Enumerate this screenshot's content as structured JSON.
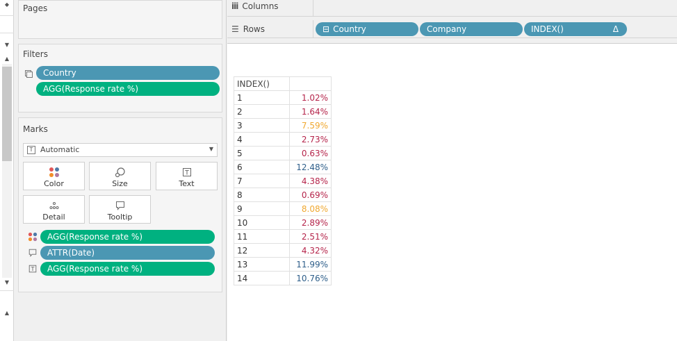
{
  "pages": {
    "title": "Pages"
  },
  "filters": {
    "title": "Filters",
    "items": [
      {
        "label": "Country",
        "color": "#4b97b3"
      },
      {
        "label": "AGG(Response rate %)",
        "color": "#00b180"
      }
    ]
  },
  "marks": {
    "title": "Marks",
    "type_selected": "Automatic",
    "buttons": {
      "color": "Color",
      "size": "Size",
      "text": "Text",
      "detail": "Detail",
      "tooltip": "Tooltip"
    },
    "fields": [
      {
        "icon": "color-dots-icon",
        "label": "AGG(Response rate %)",
        "color": "#00b180"
      },
      {
        "icon": "tooltip-icon",
        "label": "ATTR(Date)",
        "color": "#4b97b3"
      },
      {
        "icon": "text-icon",
        "label": "AGG(Response rate %)",
        "color": "#00b180"
      }
    ]
  },
  "shelves": {
    "columns_label": "Columns",
    "rows_label": "Rows",
    "rows_pills": [
      {
        "label": "Country",
        "prefix": "⊟",
        "color": "#4b97b3"
      },
      {
        "label": "Company",
        "color": "#4b97b3"
      },
      {
        "label": "INDEX()",
        "suffix": "Δ",
        "color": "#4b97b3"
      }
    ]
  },
  "table": {
    "header": "INDEX()",
    "rows": [
      {
        "index": "1",
        "value": "1.02%",
        "color": "#b5244a"
      },
      {
        "index": "2",
        "value": "1.64%",
        "color": "#b5244a"
      },
      {
        "index": "3",
        "value": "7.59%",
        "color": "#f0a830"
      },
      {
        "index": "4",
        "value": "2.73%",
        "color": "#b5244a"
      },
      {
        "index": "5",
        "value": "0.63%",
        "color": "#b5244a"
      },
      {
        "index": "6",
        "value": "12.48%",
        "color": "#2f5f8a"
      },
      {
        "index": "7",
        "value": "4.38%",
        "color": "#b5244a"
      },
      {
        "index": "8",
        "value": "0.69%",
        "color": "#b5244a"
      },
      {
        "index": "9",
        "value": "8.08%",
        "color": "#f0a830"
      },
      {
        "index": "10",
        "value": "2.89%",
        "color": "#b5244a"
      },
      {
        "index": "11",
        "value": "2.51%",
        "color": "#b5244a"
      },
      {
        "index": "12",
        "value": "4.32%",
        "color": "#b5244a"
      },
      {
        "index": "13",
        "value": "11.99%",
        "color": "#2f5f8a"
      },
      {
        "index": "14",
        "value": "10.76%",
        "color": "#2f5f8a"
      }
    ]
  }
}
